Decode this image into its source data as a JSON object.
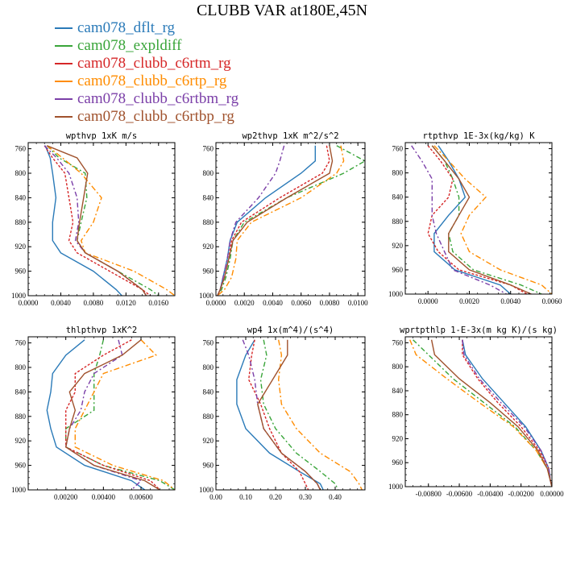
{
  "figure": {
    "title": "CLUBB VAR at180E,45N"
  },
  "chart_data": {
    "type": "line",
    "series": [
      {
        "name": "cam078_dflt_rg",
        "color": "#2a7ab8",
        "dash": ""
      },
      {
        "name": "cam078_expldiff",
        "color": "#3aa53a",
        "dash": "6,3,2,3"
      },
      {
        "name": "cam078_clubb_c6rtm_rg",
        "color": "#d62728",
        "dash": "3,2"
      },
      {
        "name": "cam078_clubb_c6rtp_rg",
        "color": "#ff8c00",
        "dash": "7,3,2,3"
      },
      {
        "name": "cam078_clubb_c6rtbm_rg",
        "color": "#7b3fa8",
        "dash": "6,3,2,3"
      },
      {
        "name": "cam078_clubb_c6rtbp_rg",
        "color": "#a0522d",
        "dash": ""
      }
    ],
    "panels": [
      {
        "title": "wpthvp   1xK m/s",
        "xlim": [
          0,
          0.018
        ],
        "ylim": [
          1000,
          750
        ],
        "xticks": [
          0,
          0.004,
          0.008,
          0.012,
          0.016
        ],
        "xticklabels": [
          "0.0000",
          "0.0040",
          "0.0080",
          "0.0120",
          "0.0160"
        ],
        "yticks": [
          760,
          800,
          840,
          880,
          920,
          960,
          1000
        ],
        "y": [
          755,
          775,
          800,
          840,
          880,
          910,
          930,
          960,
          990,
          1000
        ],
        "values": [
          [
            0.0021,
            0.0027,
            0.003,
            0.0034,
            0.003,
            0.003,
            0.004,
            0.008,
            0.0108,
            0.0115
          ],
          [
            0.0023,
            0.0038,
            0.007,
            0.0072,
            0.0065,
            0.006,
            0.007,
            0.011,
            0.015,
            0.016
          ],
          [
            0.002,
            0.003,
            0.0045,
            0.005,
            0.0055,
            0.005,
            0.006,
            0.01,
            0.014,
            0.015
          ],
          [
            0.0023,
            0.0042,
            0.0065,
            0.009,
            0.008,
            0.0065,
            0.007,
            0.013,
            0.017,
            0.018
          ],
          [
            0.002,
            0.0035,
            0.005,
            0.006,
            0.0062,
            0.0058,
            0.007,
            0.011,
            0.014,
            0.0145
          ],
          [
            0.0023,
            0.006,
            0.0073,
            0.0068,
            0.0063,
            0.006,
            0.007,
            0.011,
            0.014,
            0.0145
          ]
        ]
      },
      {
        "title": "wp2thvp   1xK m^2/s^2",
        "xlim": [
          0,
          0.0105
        ],
        "ylim": [
          1000,
          750
        ],
        "xticks": [
          0,
          0.002,
          0.004,
          0.006,
          0.008,
          0.01
        ],
        "xticklabels": [
          "0.0000",
          "0.0020",
          "0.0040",
          "0.0060",
          "0.0080",
          "0.0100"
        ],
        "yticks": [
          760,
          800,
          840,
          880,
          920,
          960,
          1000
        ],
        "y": [
          755,
          780,
          800,
          840,
          880,
          910,
          940,
          970,
          990,
          1000
        ],
        "values": [
          [
            0.007,
            0.007,
            0.006,
            0.0035,
            0.0015,
            0.001,
            0.0008,
            0.0005,
            0.0003,
            0.0001
          ],
          [
            0.0085,
            0.0105,
            0.009,
            0.005,
            0.002,
            0.0012,
            0.001,
            0.0007,
            0.0004,
            0.0001
          ],
          [
            0.0078,
            0.008,
            0.0075,
            0.0045,
            0.0018,
            0.0011,
            0.0009,
            0.0006,
            0.0003,
            0.0001
          ],
          [
            0.0088,
            0.009,
            0.0085,
            0.006,
            0.0025,
            0.0015,
            0.0014,
            0.0011,
            0.0006,
            0.0001
          ],
          [
            0.0048,
            0.0045,
            0.0042,
            0.003,
            0.0014,
            0.001,
            0.0008,
            0.0005,
            0.0003,
            0.0001
          ],
          [
            0.008,
            0.0082,
            0.008,
            0.005,
            0.0022,
            0.0012,
            0.0009,
            0.0006,
            0.0003,
            0.0001
          ]
        ]
      },
      {
        "title": "rtpthvp   1E-3x(kg/kg) K",
        "xlim": [
          -0.0011,
          0.006
        ],
        "ylim": [
          1000,
          750
        ],
        "xticks": [
          0,
          0.002,
          0.004,
          0.006
        ],
        "xticklabels": [
          "0.0000",
          "0.0020",
          "0.0040",
          "0.0060"
        ],
        "yticks": [
          760,
          800,
          840,
          880,
          920,
          960,
          1000
        ],
        "y": [
          755,
          780,
          810,
          840,
          870,
          900,
          930,
          960,
          985,
          1000
        ],
        "values": [
          [
            0.0005,
            0.001,
            0.0015,
            0.0018,
            0.001,
            0.0003,
            0.0003,
            0.0013,
            0.0035,
            0.004
          ],
          [
            0.0002,
            0.0008,
            0.0012,
            0.0015,
            0.0015,
            0.001,
            0.0012,
            0.0022,
            0.0045,
            0.0055
          ],
          [
            0.0,
            0.0006,
            0.0012,
            0.001,
            0.0002,
            0.0,
            0.0005,
            0.0015,
            0.004,
            0.0048
          ],
          [
            0.0003,
            0.001,
            0.0018,
            0.0028,
            0.002,
            0.0016,
            0.002,
            0.0035,
            0.0055,
            0.006
          ],
          [
            -0.0008,
            -0.0003,
            0.0002,
            0.0002,
            0.0002,
            0.0004,
            0.0008,
            0.0012,
            0.003,
            0.0038
          ],
          [
            0.0002,
            0.0008,
            0.0015,
            0.002,
            0.0015,
            0.001,
            0.001,
            0.002,
            0.004,
            0.005
          ]
        ]
      },
      {
        "title": "thlpthvp   1xK^2",
        "xlim": [
          0,
          0.0078
        ],
        "ylim": [
          1000,
          750
        ],
        "xticks": [
          0.002,
          0.004,
          0.006
        ],
        "xticklabels": [
          "0.00200",
          "0.00400",
          "0.00600"
        ],
        "yticks": [
          760,
          800,
          840,
          880,
          920,
          960,
          1000
        ],
        "y": [
          755,
          780,
          810,
          840,
          870,
          900,
          930,
          960,
          985,
          1000
        ],
        "values": [
          [
            0.003,
            0.002,
            0.0013,
            0.0012,
            0.001,
            0.0012,
            0.0015,
            0.003,
            0.0055,
            0.0062
          ],
          [
            0.004,
            0.0038,
            0.0035,
            0.0035,
            0.0035,
            0.002,
            0.002,
            0.004,
            0.007,
            0.0078
          ],
          [
            0.0055,
            0.004,
            0.0025,
            0.0025,
            0.002,
            0.002,
            0.002,
            0.004,
            0.0065,
            0.007
          ],
          [
            0.006,
            0.0068,
            0.004,
            0.0035,
            0.003,
            0.0025,
            0.0025,
            0.0045,
            0.0072,
            0.0078
          ],
          [
            0.0048,
            0.005,
            0.0035,
            0.003,
            0.0028,
            0.0022,
            0.002,
            0.0035,
            0.006,
            0.0055
          ],
          [
            0.006,
            0.005,
            0.003,
            0.0022,
            0.0025,
            0.0022,
            0.002,
            0.0035,
            0.0062,
            0.007
          ]
        ]
      },
      {
        "title": "wp4   1x(m^4)/(s^4)",
        "xlim": [
          0,
          0.5
        ],
        "ylim": [
          1000,
          750
        ],
        "xticks": [
          0,
          0.1,
          0.2,
          0.3,
          0.4
        ],
        "xticklabels": [
          "0.00",
          "0.10",
          "0.20",
          "0.30",
          "0.40"
        ],
        "yticks": [
          760,
          800,
          840,
          880,
          920,
          960,
          1000
        ],
        "y": [
          755,
          780,
          820,
          860,
          900,
          940,
          970,
          990,
          1000
        ],
        "values": [
          [
            0.13,
            0.1,
            0.07,
            0.07,
            0.1,
            0.18,
            0.28,
            0.35,
            0.36
          ],
          [
            0.16,
            0.17,
            0.15,
            0.16,
            0.2,
            0.27,
            0.35,
            0.4,
            0.41
          ],
          [
            0.13,
            0.12,
            0.11,
            0.15,
            0.18,
            0.22,
            0.28,
            0.3,
            0.31
          ],
          [
            0.21,
            0.22,
            0.21,
            0.22,
            0.27,
            0.35,
            0.45,
            0.48,
            0.49
          ],
          [
            0.09,
            0.11,
            0.13,
            0.14,
            0.16,
            0.22,
            0.3,
            0.34,
            0.35
          ],
          [
            0.24,
            0.24,
            0.19,
            0.14,
            0.16,
            0.22,
            0.3,
            0.34,
            0.35
          ]
        ]
      },
      {
        "title": "wprtpthlp   1-E-3x(m kg K)/(s kg)",
        "xlim": [
          -0.0095,
          0
        ],
        "ylim": [
          1000,
          750
        ],
        "xticks": [
          -0.008,
          -0.006,
          -0.004,
          -0.002,
          0
        ],
        "xticklabels": [
          "-0.00800",
          "-0.00600",
          "-0.00400",
          "-0.00200",
          "0.00000"
        ],
        "yticks": [
          760,
          800,
          840,
          880,
          920,
          960,
          1000
        ],
        "y": [
          755,
          780,
          820,
          860,
          900,
          940,
          970,
          990,
          1000
        ],
        "values": [
          [
            -0.0058,
            -0.0056,
            -0.0045,
            -0.0031,
            -0.0017,
            -0.0007,
            -0.0002,
            -0.0001,
            0
          ],
          [
            -0.009,
            -0.008,
            -0.0064,
            -0.0044,
            -0.0024,
            -0.001,
            -0.0003,
            -0.0001,
            0
          ],
          [
            -0.0058,
            -0.0058,
            -0.0048,
            -0.0035,
            -0.002,
            -0.0008,
            -0.0002,
            -0.0001,
            0
          ],
          [
            -0.0092,
            -0.0088,
            -0.0068,
            -0.0047,
            -0.0025,
            -0.001,
            -0.0003,
            -0.0001,
            0
          ],
          [
            -0.0058,
            -0.0057,
            -0.0047,
            -0.0033,
            -0.0018,
            -0.0007,
            -0.0002,
            -0.0001,
            0
          ],
          [
            -0.0078,
            -0.0076,
            -0.006,
            -0.004,
            -0.0022,
            -0.0009,
            -0.0003,
            -0.0001,
            0
          ]
        ]
      }
    ]
  }
}
